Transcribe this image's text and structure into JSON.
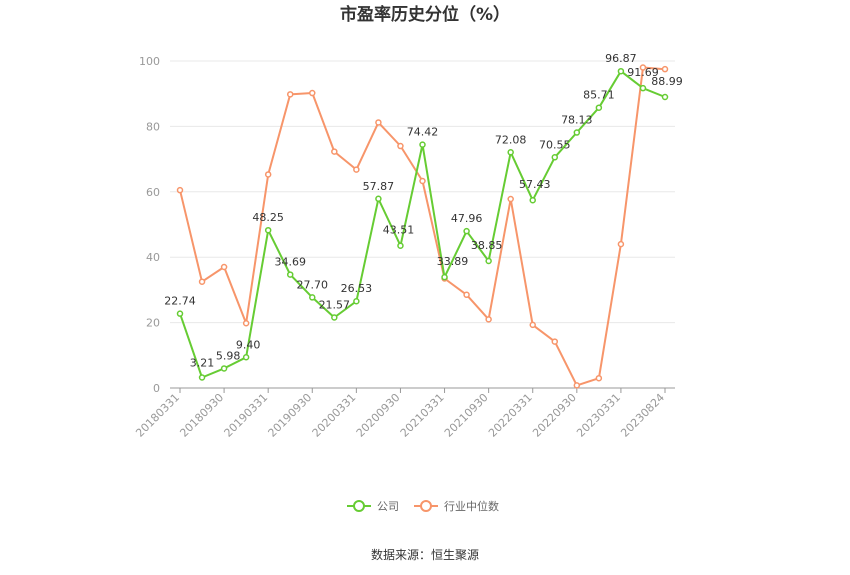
{
  "chart_data": {
    "type": "line",
    "title": "市盈率历史分位（%）",
    "ylim": [
      0,
      100
    ],
    "yticks": [
      0,
      20,
      40,
      60,
      80,
      100
    ],
    "categories": [
      "20180331",
      "20180630",
      "20180930",
      "20181231",
      "20190331",
      "20190630",
      "20190930",
      "20191231",
      "20200331",
      "20200630",
      "20200930",
      "20201231",
      "20210331",
      "20210630",
      "20210930",
      "20211231",
      "20220331",
      "20220630",
      "20220930",
      "20221231",
      "20230331",
      "20230630",
      "20230824"
    ],
    "xtick_labels": [
      "20180331",
      "",
      "20180930",
      "",
      "20190331",
      "",
      "20190930",
      "",
      "20200331",
      "",
      "20200930",
      "",
      "20210331",
      "",
      "20210930",
      "",
      "20220331",
      "",
      "20220930",
      "",
      "20230331",
      "",
      "20230824"
    ],
    "series": [
      {
        "name": "公司",
        "color": "#66cc33",
        "values": [
          22.74,
          3.21,
          5.98,
          9.4,
          48.25,
          34.69,
          27.7,
          21.57,
          26.53,
          57.87,
          43.51,
          74.42,
          33.89,
          47.96,
          38.85,
          72.08,
          57.43,
          70.55,
          78.13,
          85.71,
          96.87,
          91.69,
          88.99
        ],
        "labels": [
          "22.74",
          "3.21",
          "5.98",
          "9.40",
          "48.25",
          "34.69",
          "27.70",
          "21.57",
          "26.53",
          "57.87",
          "43.51",
          "74.42",
          "33.89",
          "47.96",
          "38.85",
          "72.08",
          "57.43",
          "70.55",
          "78.13",
          "85.71",
          "96.87",
          "91.69",
          "88.99"
        ]
      },
      {
        "name": "行业中位数",
        "color": "#f7956a",
        "values": [
          60.5,
          32.5,
          37.0,
          19.8,
          65.3,
          89.8,
          90.2,
          72.3,
          66.8,
          81.2,
          74.0,
          63.3,
          33.5,
          28.5,
          21.0,
          57.8,
          19.3,
          14.2,
          0.8,
          3.0,
          44.0,
          98.0,
          97.5
        ]
      }
    ],
    "legend": "bottom-center",
    "grid": true
  },
  "source_text": "数据来源：恒生聚源"
}
